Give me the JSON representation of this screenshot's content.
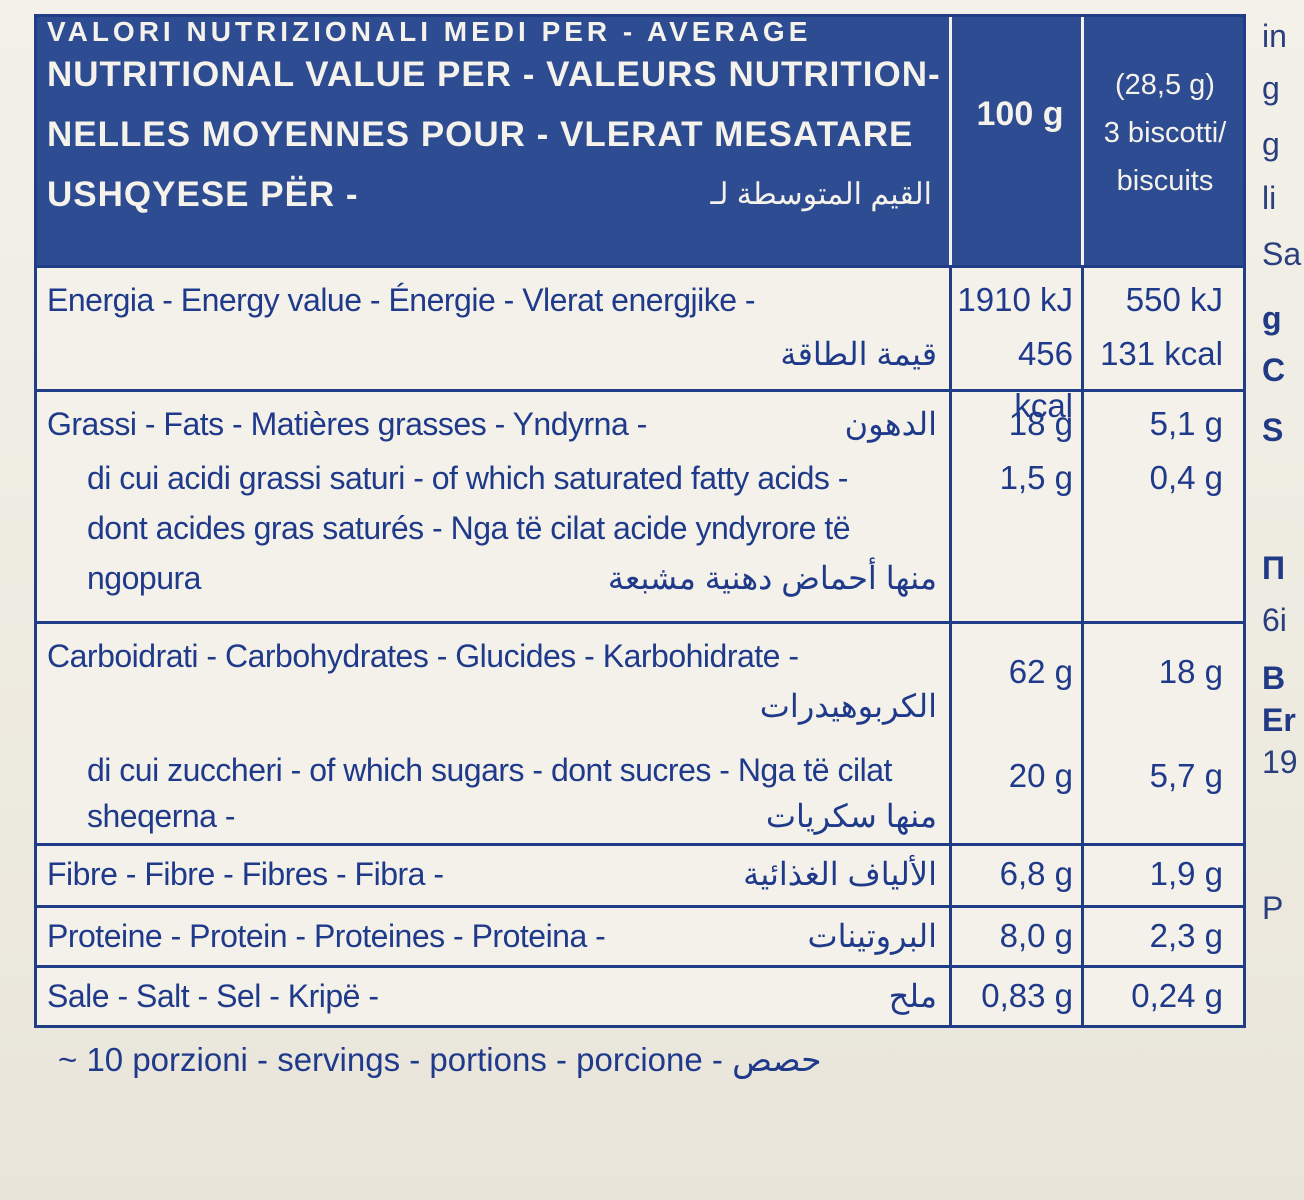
{
  "header": {
    "line1": "VALORI NUTRIZIONALI MEDI PER - AVERAGE",
    "line2": "NUTRITIONAL VALUE PER - VALEURS NUTRITION-",
    "line3": "NELLES MOYENNES POUR - VLERAT MESATARE",
    "line4": "USHQYESE PËR -",
    "line4_ar": "القيم المتوسطة لـ",
    "col_100g": "100 g",
    "col_portion_1": "(28,5 g)",
    "col_portion_2": "3 biscotti/",
    "col_portion_3": "biscuits"
  },
  "rows": {
    "energy": {
      "label": "Energia - Energy value - Énergie - Vlerat energjike -",
      "label_ar": "قيمة الطاقة",
      "v100_kj": "1910 kJ",
      "v100_kcal": "456 kcal",
      "vp_kj": "550 kJ",
      "vp_kcal": "131 kcal"
    },
    "fats": {
      "label": "Grassi - Fats - Matières grasses - Yndyrna -",
      "label_ar": "الدهون",
      "v100": "18 g",
      "vp": "5,1 g"
    },
    "saturated": {
      "label1": "di cui acidi grassi saturi - of which saturated fatty acids -",
      "label2": "dont acides gras saturés - Nga të cilat acide yndyrore të",
      "label3": "ngopura",
      "label_ar": "منها أحماض دهنية مشبعة",
      "v100": "1,5 g",
      "vp": "0,4 g"
    },
    "carbs": {
      "label": "Carboidrati - Carbohydrates - Glucides - Karbohidrate -",
      "label_ar": "الكربوهيدرات",
      "v100": "62 g",
      "vp": "18 g"
    },
    "sugars": {
      "label1": "di cui zuccheri - of which sugars - dont sucres - Nga të cilat",
      "label2": "sheqerna -",
      "label_ar": "منها سكريات",
      "v100": "20 g",
      "vp": "5,7 g"
    },
    "fibre": {
      "label": "Fibre - Fibre - Fibres - Fibra -",
      "label_ar": "الألياف الغذائية",
      "v100": "6,8 g",
      "vp": "1,9 g"
    },
    "protein": {
      "label": "Proteine - Protein - Proteines - Proteina -",
      "label_ar": "البروتينات",
      "v100": "8,0 g",
      "vp": "2,3 g"
    },
    "salt": {
      "label": "Sale - Salt - Sel - Kripë -",
      "label_ar": "ملح",
      "v100": "0,83 g",
      "vp": "0,24 g"
    }
  },
  "footer": {
    "text": "~ 10 porzioni - servings - portions - porcione -",
    "text_ar": "حصص"
  },
  "edge_text": [
    "in",
    "g",
    "g",
    "li",
    "Sa",
    "g",
    "C",
    "S",
    "П",
    "6i",
    "B",
    "Er",
    "19",
    "P"
  ],
  "colors": {
    "label_blue": "#2e4c92",
    "paper": "#f3f1e9",
    "ink": "#1f3a8a"
  }
}
